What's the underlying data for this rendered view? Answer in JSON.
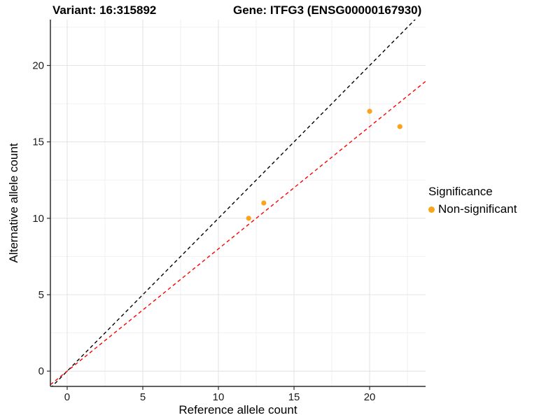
{
  "figure": {
    "title_left": "Variant: 16:315892",
    "title_right": "Gene: ITFG3 (ENSG00000167930)"
  },
  "chart_data": {
    "type": "scatter",
    "xlabel": "Reference allele count",
    "ylabel": "Alternative allele count",
    "xlim": [
      -1.11,
      23.7
    ],
    "ylim": [
      -1.0,
      23.0
    ],
    "x_ticks": [
      0,
      5,
      10,
      15,
      20
    ],
    "y_ticks": [
      0,
      5,
      10,
      15,
      20
    ],
    "x_minor_gridlines": [
      2.5,
      7.5,
      12.5,
      17.5,
      22.5
    ],
    "y_minor_gridlines": [
      2.5,
      7.5,
      12.5,
      17.5,
      22.5
    ],
    "grid": "on",
    "series": [
      {
        "name": "Non-significant",
        "color": "#F9A51B",
        "points": [
          {
            "x": 12,
            "y": 10
          },
          {
            "x": 13,
            "y": 11
          },
          {
            "x": 20,
            "y": 17
          },
          {
            "x": 22,
            "y": 16
          }
        ]
      }
    ],
    "reference_lines": [
      {
        "name": "identity",
        "slope": 1.0,
        "intercept": 0,
        "color": "#000000",
        "style": "dashed"
      },
      {
        "name": "expected-ratio",
        "slope": 0.8,
        "intercept": 0,
        "color": "#FF0000",
        "style": "dashed"
      }
    ],
    "legend": {
      "title": "Significance",
      "position": "right",
      "entries": [
        {
          "label": "Non-significant",
          "color": "#F9A51B",
          "marker": "circle"
        }
      ]
    },
    "colors": {
      "grid_major": "#E4E4E4",
      "grid_minor": "#F1F1F1",
      "axis_line": "#2e2e2e",
      "tick_text": "#1a1a1a"
    }
  }
}
